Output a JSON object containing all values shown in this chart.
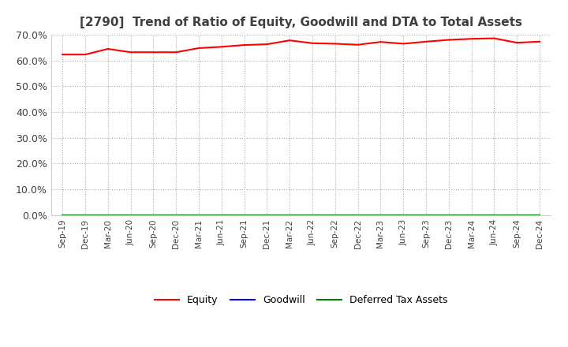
{
  "title": "[2790]  Trend of Ratio of Equity, Goodwill and DTA to Total Assets",
  "x_labels": [
    "Sep-19",
    "Dec-19",
    "Mar-20",
    "Jun-20",
    "Sep-20",
    "Dec-20",
    "Mar-21",
    "Jun-21",
    "Sep-21",
    "Dec-21",
    "Mar-22",
    "Jun-22",
    "Sep-22",
    "Dec-22",
    "Mar-23",
    "Jun-23",
    "Sep-23",
    "Dec-23",
    "Mar-24",
    "Jun-24",
    "Sep-24",
    "Dec-24"
  ],
  "equity": [
    0.623,
    0.623,
    0.645,
    0.632,
    0.632,
    0.632,
    0.648,
    0.653,
    0.66,
    0.663,
    0.678,
    0.667,
    0.665,
    0.661,
    0.672,
    0.665,
    0.673,
    0.68,
    0.684,
    0.686,
    0.669,
    0.673
  ],
  "goodwill": [
    0.0,
    0.0,
    0.0,
    0.0,
    0.0,
    0.0,
    0.0,
    0.0,
    0.0,
    0.0,
    0.0,
    0.0,
    0.0,
    0.0,
    0.0,
    0.0,
    0.0,
    0.0,
    0.0,
    0.0,
    0.0,
    0.0
  ],
  "dta": [
    0.0,
    0.0,
    0.0,
    0.0,
    0.0,
    0.0,
    0.0,
    0.0,
    0.0,
    0.0,
    0.0,
    0.0,
    0.0,
    0.0,
    0.0,
    0.0,
    0.0,
    0.0,
    0.0,
    0.0,
    0.0,
    0.0
  ],
  "equity_color": "#ff0000",
  "goodwill_color": "#0000ff",
  "dta_color": "#008000",
  "ylim": [
    0.0,
    0.7
  ],
  "yticks": [
    0.0,
    0.1,
    0.2,
    0.3,
    0.4,
    0.5,
    0.6,
    0.7
  ],
  "background_color": "#ffffff",
  "grid_color": "#aaaaaa",
  "title_fontsize": 11,
  "title_color": "#404040",
  "tick_color": "#404040",
  "legend_labels": [
    "Equity",
    "Goodwill",
    "Deferred Tax Assets"
  ]
}
